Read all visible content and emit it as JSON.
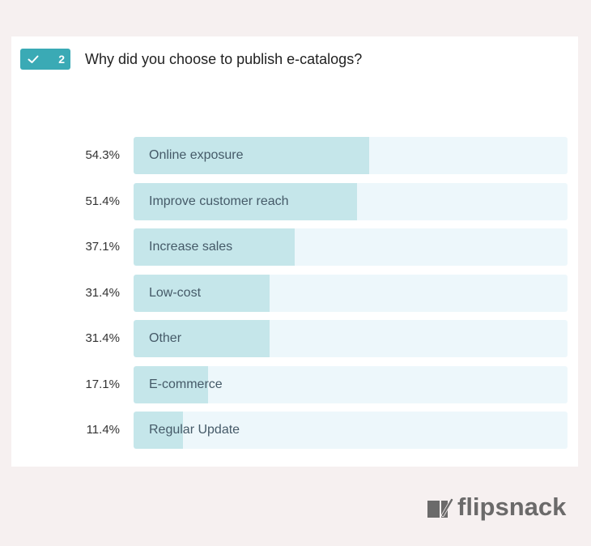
{
  "question": {
    "number": "2",
    "title": "Why did you choose to publish e-catalogs?"
  },
  "icons": {
    "badge_icon": "check-icon",
    "logo_icon": "flipsnack-logo-icon"
  },
  "colors": {
    "accent": "#3aaab5",
    "bar_fill": "#c5e6ea",
    "bar_track": "#edf7fb"
  },
  "chart_data": {
    "type": "bar",
    "orientation": "horizontal",
    "title": "Why did you choose to publish e-catalogs?",
    "categories": [
      "Online exposure",
      "Improve customer reach",
      "Increase sales",
      "Low-cost",
      "Other",
      "E-commerce",
      "Regular Update"
    ],
    "values": [
      54.3,
      51.4,
      37.1,
      31.4,
      31.4,
      17.1,
      11.4
    ],
    "value_labels": [
      "54.3%",
      "51.4%",
      "37.1%",
      "31.4%",
      "31.4%",
      "17.1%",
      "11.4%"
    ],
    "xlim": [
      0,
      100
    ],
    "unit": "%",
    "grid": false,
    "legend": "none"
  },
  "brand": {
    "name": "flipsnack"
  }
}
